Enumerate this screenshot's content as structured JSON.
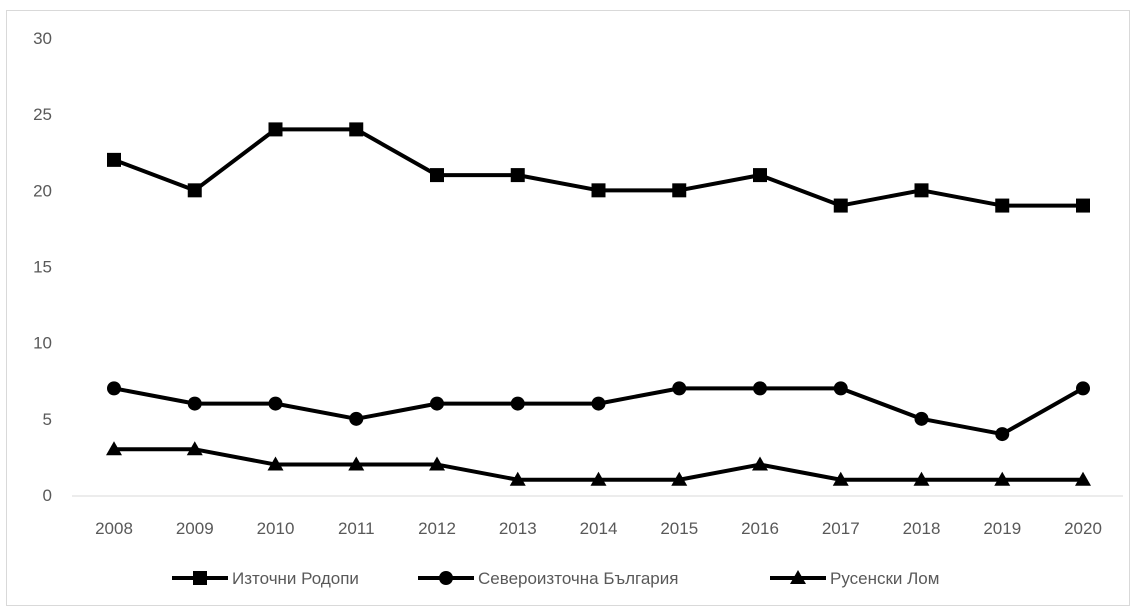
{
  "chart_data": {
    "type": "line",
    "title": "",
    "xlabel": "",
    "ylabel": "",
    "ylim": [
      0,
      30
    ],
    "yticks": [
      "0",
      "5",
      "10",
      "15",
      "20",
      "25",
      "30"
    ],
    "categories": [
      "2008",
      "2009",
      "2010",
      "2011",
      "2012",
      "2013",
      "2014",
      "2015",
      "2016",
      "2017",
      "2018",
      "2019",
      "2020"
    ],
    "grid": false,
    "legend_position": "bottom",
    "series": [
      {
        "name": "Източни Родопи",
        "marker": "square",
        "color": "#000000",
        "values": [
          22,
          20,
          24,
          24,
          21,
          21,
          20,
          20,
          21,
          19,
          20,
          19,
          19
        ]
      },
      {
        "name": "Североизточна България",
        "marker": "circle",
        "color": "#000000",
        "values": [
          7,
          6,
          6,
          5,
          6,
          6,
          6,
          7,
          7,
          7,
          5,
          4,
          7
        ]
      },
      {
        "name": "Русенски Лом",
        "marker": "triangle",
        "color": "#000000",
        "values": [
          3,
          3,
          2,
          2,
          2,
          1,
          1,
          1,
          2,
          1,
          1,
          1,
          1
        ]
      }
    ]
  }
}
